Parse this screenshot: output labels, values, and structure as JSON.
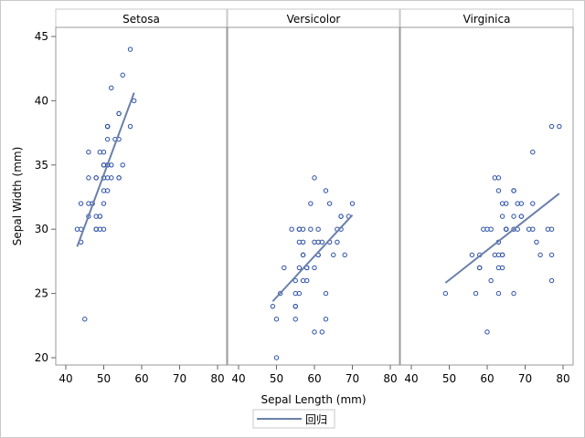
{
  "chart_data": {
    "type": "scatter",
    "xlabel": "Sepal Length (mm)",
    "ylabel": "Sepal Width (mm)",
    "xlim": [
      37,
      82
    ],
    "ylim": [
      19,
      46
    ],
    "xticks": [
      "40",
      "50",
      "60",
      "70",
      "80"
    ],
    "yticks": [
      "20",
      "25",
      "30",
      "35",
      "40",
      "45"
    ],
    "grid": false,
    "legend": {
      "position": "bottom",
      "entries": [
        "回归"
      ]
    },
    "colors": {
      "marker": "#2a4ea6",
      "line": "#6a80aa",
      "panel_border": "#999999"
    },
    "panels": [
      {
        "title": "Setosa",
        "regression": {
          "slope": 0.7985,
          "intercept": -5.69,
          "x_range": [
            43,
            58
          ]
        },
        "points": [
          [
            51,
            35
          ],
          [
            49,
            30
          ],
          [
            47,
            32
          ],
          [
            46,
            31
          ],
          [
            50,
            36
          ],
          [
            54,
            39
          ],
          [
            46,
            34
          ],
          [
            50,
            34
          ],
          [
            44,
            29
          ],
          [
            49,
            31
          ],
          [
            54,
            37
          ],
          [
            48,
            34
          ],
          [
            48,
            30
          ],
          [
            43,
            30
          ],
          [
            58,
            40
          ],
          [
            57,
            44
          ],
          [
            54,
            39
          ],
          [
            51,
            35
          ],
          [
            57,
            38
          ],
          [
            51,
            38
          ],
          [
            54,
            34
          ],
          [
            51,
            37
          ],
          [
            46,
            36
          ],
          [
            51,
            33
          ],
          [
            48,
            34
          ],
          [
            50,
            30
          ],
          [
            50,
            34
          ],
          [
            52,
            35
          ],
          [
            52,
            34
          ],
          [
            47,
            32
          ],
          [
            48,
            31
          ],
          [
            54,
            34
          ],
          [
            52,
            41
          ],
          [
            55,
            42
          ],
          [
            49,
            31
          ],
          [
            50,
            32
          ],
          [
            55,
            35
          ],
          [
            49,
            36
          ],
          [
            44,
            30
          ],
          [
            51,
            34
          ],
          [
            50,
            35
          ],
          [
            45,
            23
          ],
          [
            44,
            32
          ],
          [
            50,
            35
          ],
          [
            51,
            38
          ],
          [
            48,
            30
          ],
          [
            51,
            38
          ],
          [
            46,
            32
          ],
          [
            53,
            37
          ],
          [
            50,
            33
          ]
        ]
      },
      {
        "title": "Versicolor",
        "regression": {
          "slope": 0.3197,
          "intercept": 8.72,
          "x_range": [
            49,
            70
          ]
        },
        "points": [
          [
            70,
            32
          ],
          [
            64,
            32
          ],
          [
            69,
            31
          ],
          [
            55,
            23
          ],
          [
            65,
            28
          ],
          [
            57,
            28
          ],
          [
            63,
            33
          ],
          [
            49,
            24
          ],
          [
            66,
            29
          ],
          [
            52,
            27
          ],
          [
            50,
            20
          ],
          [
            59,
            30
          ],
          [
            60,
            22
          ],
          [
            61,
            29
          ],
          [
            56,
            29
          ],
          [
            67,
            31
          ],
          [
            56,
            30
          ],
          [
            58,
            27
          ],
          [
            62,
            22
          ],
          [
            56,
            25
          ],
          [
            59,
            32
          ],
          [
            61,
            28
          ],
          [
            63,
            25
          ],
          [
            61,
            28
          ],
          [
            64,
            29
          ],
          [
            66,
            30
          ],
          [
            68,
            28
          ],
          [
            67,
            30
          ],
          [
            60,
            29
          ],
          [
            57,
            26
          ],
          [
            55,
            24
          ],
          [
            55,
            24
          ],
          [
            58,
            27
          ],
          [
            60,
            27
          ],
          [
            54,
            30
          ],
          [
            60,
            34
          ],
          [
            67,
            31
          ],
          [
            63,
            23
          ],
          [
            56,
            30
          ],
          [
            55,
            25
          ],
          [
            55,
            26
          ],
          [
            61,
            30
          ],
          [
            58,
            26
          ],
          [
            50,
            23
          ],
          [
            56,
            27
          ],
          [
            57,
            30
          ],
          [
            57,
            29
          ],
          [
            62,
            29
          ],
          [
            51,
            25
          ],
          [
            57,
            28
          ]
        ]
      },
      {
        "title": "Virginica",
        "regression": {
          "slope": 0.2319,
          "intercept": 14.46,
          "x_range": [
            49,
            79
          ]
        },
        "points": [
          [
            63,
            33
          ],
          [
            58,
            27
          ],
          [
            71,
            30
          ],
          [
            63,
            29
          ],
          [
            65,
            30
          ],
          [
            76,
            30
          ],
          [
            49,
            25
          ],
          [
            73,
            29
          ],
          [
            67,
            25
          ],
          [
            72,
            36
          ],
          [
            65,
            32
          ],
          [
            64,
            27
          ],
          [
            68,
            30
          ],
          [
            57,
            25
          ],
          [
            58,
            28
          ],
          [
            64,
            32
          ],
          [
            65,
            30
          ],
          [
            77,
            38
          ],
          [
            77,
            26
          ],
          [
            60,
            22
          ],
          [
            69,
            32
          ],
          [
            56,
            28
          ],
          [
            77,
            28
          ],
          [
            63,
            27
          ],
          [
            67,
            33
          ],
          [
            72,
            32
          ],
          [
            62,
            28
          ],
          [
            61,
            30
          ],
          [
            64,
            28
          ],
          [
            72,
            30
          ],
          [
            74,
            28
          ],
          [
            79,
            38
          ],
          [
            64,
            28
          ],
          [
            63,
            28
          ],
          [
            61,
            26
          ],
          [
            77,
            30
          ],
          [
            63,
            34
          ],
          [
            64,
            31
          ],
          [
            60,
            30
          ],
          [
            69,
            31
          ],
          [
            67,
            31
          ],
          [
            69,
            31
          ],
          [
            58,
            27
          ],
          [
            68,
            32
          ],
          [
            67,
            33
          ],
          [
            67,
            30
          ],
          [
            63,
            25
          ],
          [
            65,
            30
          ],
          [
            62,
            34
          ],
          [
            59,
            30
          ]
        ]
      }
    ]
  }
}
